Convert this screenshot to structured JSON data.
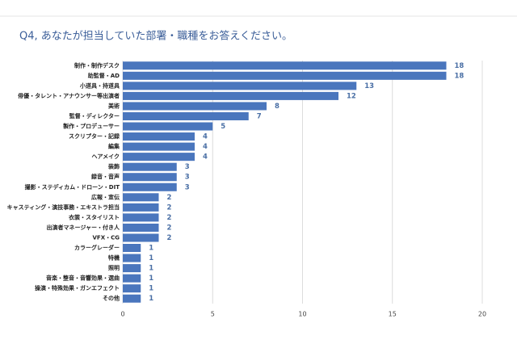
{
  "chart_data": {
    "type": "bar",
    "orientation": "horizontal",
    "title": "Q4, あなたが担当していた部署・職種をお答えください。",
    "categories": [
      "制作・制作デスク",
      "助監督・AD",
      "小道具・持道具",
      "俳優・タレント・アナウンサー等出演者",
      "美術",
      "監督・ディレクター",
      "製作・プロデューサー",
      "スクリプター・記録",
      "編集",
      "ヘアメイク",
      "装飾",
      "録音・音声",
      "撮影・ステディカム・ドローン・DIT",
      "広報・宣伝",
      "キャスティング・演技事務・エキストラ担当",
      "衣裳・スタイリスト",
      "出演者マネージャー・付き人",
      "VFX・CG",
      "カラーグレーダー",
      "特機",
      "照明",
      "音楽・整音・音響効果・選曲",
      "操演・特殊効果・ガンエフェクト",
      "その他"
    ],
    "values": [
      18,
      18,
      13,
      12,
      8,
      7,
      5,
      4,
      4,
      4,
      3,
      3,
      3,
      2,
      2,
      2,
      2,
      2,
      1,
      1,
      1,
      1,
      1,
      1
    ],
    "color": "#4a76bd",
    "xlim": [
      0,
      20
    ],
    "xticks": [
      0,
      5,
      10,
      15,
      20
    ],
    "grid": true
  }
}
